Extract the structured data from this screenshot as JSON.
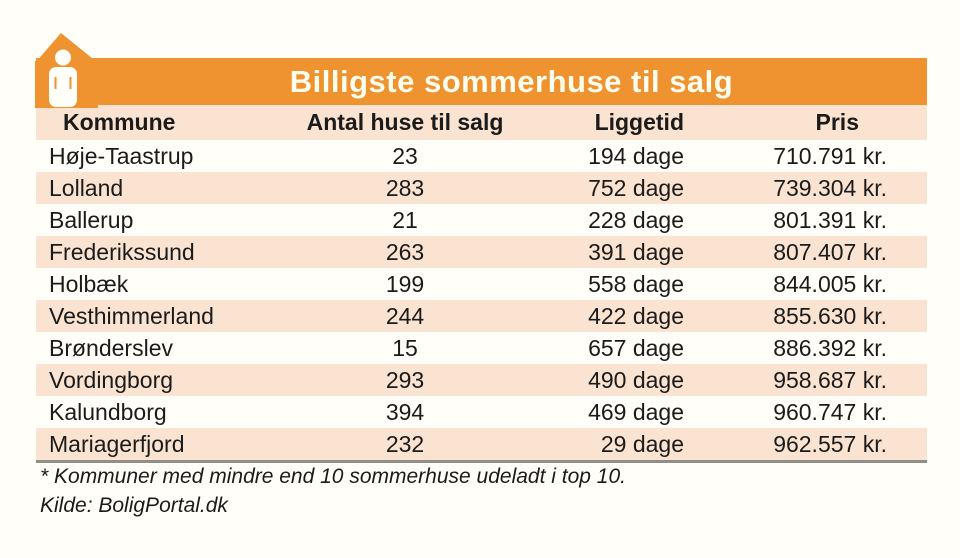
{
  "colors": {
    "banner_orange": "#EF9330",
    "row_peach": "#FAE3D0",
    "title_text": "#FFFDEE",
    "body_text": "#1B1B1B",
    "divider_gray": "#8F8F87",
    "page_background": "#FFFEF8"
  },
  "header": {
    "title": "Billigste sommerhuse til salg",
    "icon": "house-with-person-icon"
  },
  "chart_data": {
    "type": "table",
    "title": "Billigste sommerhuse til salg",
    "columns": [
      "Kommune",
      "Antal huse til salg",
      "Liggetid",
      "Pris"
    ],
    "rows": [
      [
        "Høje-Taastrup",
        "23",
        "194 dage",
        "710.791 kr."
      ],
      [
        "Lolland",
        "283",
        "752 dage",
        "739.304 kr."
      ],
      [
        "Ballerup",
        "21",
        "228 dage",
        "801.391 kr."
      ],
      [
        "Frederikssund",
        "263",
        "391 dage",
        "807.407 kr."
      ],
      [
        "Holbæk",
        "199",
        "558 dage",
        "844.005 kr."
      ],
      [
        "Vesthimmerland",
        "244",
        "422 dage",
        "855.630 kr."
      ],
      [
        "Brønderslev",
        "15",
        "657 dage",
        "886.392 kr."
      ],
      [
        "Vordingborg",
        "293",
        "490 dage",
        "958.687 kr."
      ],
      [
        "Kalundborg",
        "394",
        "469 dage",
        "960.747 kr."
      ],
      [
        "Mariagerfjord",
        "232",
        "29 dage",
        "962.557 kr."
      ]
    ],
    "layout_hints": {
      "zebra_striping": "even rows peach, odd rows white",
      "column_alignment": [
        "left",
        "center",
        "right",
        "right"
      ]
    }
  },
  "footnotes": {
    "note": "* Kommuner med mindre end 10 sommerhuse udeladt i top 10.",
    "source": "Kilde: BoligPortal.dk"
  }
}
